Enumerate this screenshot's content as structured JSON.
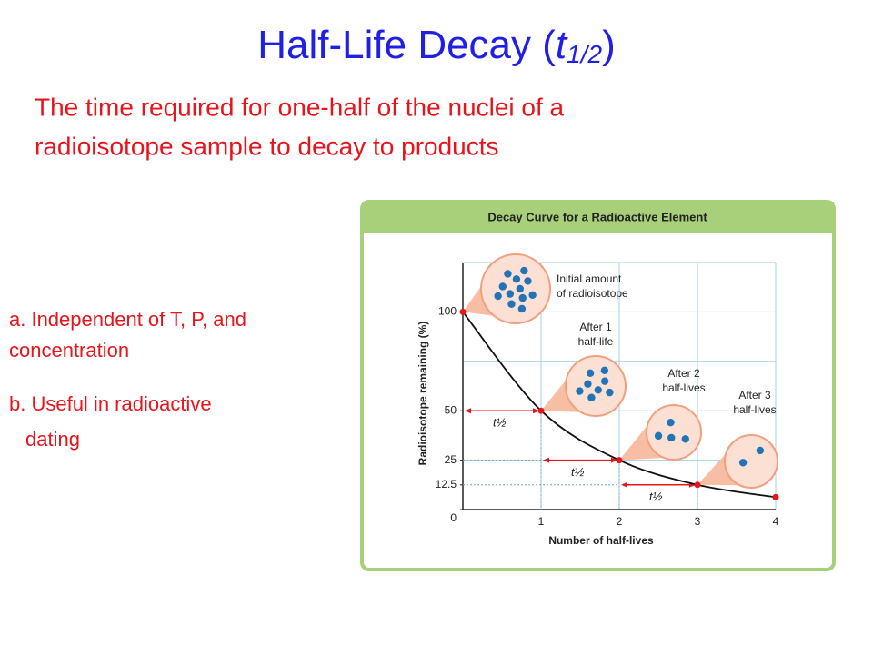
{
  "title_parts": [
    "Half-Life Decay (",
    "t",
    "1/2",
    ")"
  ],
  "subtitle_lines": [
    "The time required for one-half of the nuclei of a",
    "radioisotope sample to decay to products"
  ],
  "bullets": [
    [
      "a. Independent of T, P, and",
      "concentration"
    ],
    [
      "b. Useful in radioactive",
      "dating"
    ]
  ],
  "chart_data": {
    "type": "line",
    "title": "Decay Curve for a Radioactive Element",
    "x": [
      0,
      1,
      2,
      3,
      4
    ],
    "values": [
      100,
      50,
      25,
      12.5,
      6.25
    ],
    "color": "#111111",
    "marker_color": "#e8141b",
    "xlim": [
      0,
      4
    ],
    "ylim": [
      0,
      125
    ],
    "xticks": [
      0,
      1,
      2,
      3,
      4
    ],
    "yticks": [
      0,
      12.5,
      25,
      50,
      100
    ],
    "ygrid": [
      25,
      50,
      75,
      100,
      125
    ],
    "grid": true,
    "xlabel": "Number of half-lives",
    "ylabel": "Radioisotope remaining (%)",
    "annotations": [
      [
        "Initial amount",
        "of radioisotope"
      ],
      [
        "After 1",
        "half-life"
      ],
      [
        "After 2",
        "half-lives"
      ],
      [
        "After 3",
        "half-lives"
      ]
    ],
    "arrow_label": "t½"
  }
}
